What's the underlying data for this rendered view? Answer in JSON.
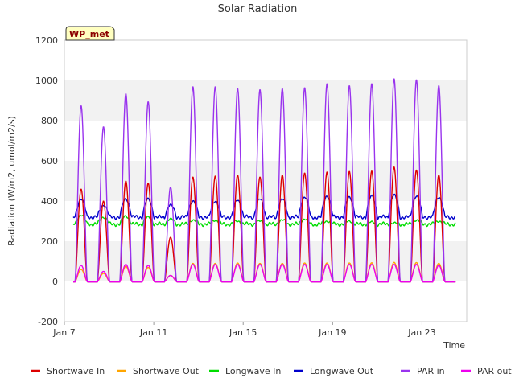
{
  "chart_data": {
    "type": "line",
    "title": "Solar Radiation",
    "xlabel": "Time",
    "ylabel": "Radiation (W/m2, umol/m2/s)",
    "badge": "WP_met",
    "ylim": [
      -200,
      1200
    ],
    "yticks": [
      -200,
      0,
      200,
      400,
      600,
      800,
      1000,
      1200
    ],
    "xlim": [
      7.0,
      25.0
    ],
    "xticks": [
      {
        "value": 7,
        "label": "Jan 7"
      },
      {
        "value": 11,
        "label": "Jan 11"
      },
      {
        "value": 15,
        "label": "Jan 15"
      },
      {
        "value": 19,
        "label": "Jan 19"
      },
      {
        "value": 23,
        "label": "Jan 23"
      }
    ],
    "grid": "horizontal bands",
    "legend_position": "bottom",
    "daily_peaks": {
      "days": [
        7.75,
        8.75,
        9.75,
        10.75,
        11.75,
        12.75,
        13.75,
        14.75,
        15.75,
        16.75,
        17.75,
        18.75,
        19.75,
        20.75,
        21.75,
        22.75,
        23.75
      ],
      "shortwave_in": [
        460,
        400,
        500,
        490,
        220,
        520,
        525,
        530,
        520,
        530,
        540,
        545,
        548,
        550,
        570,
        555,
        530
      ],
      "shortwave_out": [
        60,
        40,
        75,
        70,
        30,
        90,
        90,
        92,
        90,
        90,
        92,
        92,
        92,
        93,
        95,
        94,
        90
      ],
      "longwave_in": [
        330,
        320,
        325,
        320,
        310,
        305,
        305,
        300,
        300,
        305,
        310,
        300,
        300,
        295,
        290,
        305,
        300
      ],
      "longwave_out": [
        410,
        380,
        410,
        410,
        380,
        400,
        400,
        405,
        410,
        410,
        420,
        425,
        420,
        425,
        430,
        425,
        420
      ],
      "par_in": [
        875,
        770,
        935,
        895,
        470,
        970,
        970,
        960,
        955,
        960,
        965,
        985,
        975,
        985,
        1010,
        1005,
        975
      ],
      "par_out": [
        80,
        50,
        85,
        80,
        30,
        85,
        85,
        85,
        85,
        85,
        85,
        85,
        85,
        85,
        85,
        85,
        80
      ]
    },
    "series": [
      {
        "name": "Shortwave In",
        "color": "#dd0000",
        "key": "shortwave_in",
        "night": 0
      },
      {
        "name": "Shortwave Out",
        "color": "#ffa500",
        "key": "shortwave_out",
        "night": 0
      },
      {
        "name": "Longwave In",
        "color": "#00dd00",
        "key": "longwave_in",
        "night": 285
      },
      {
        "name": "Longwave Out",
        "color": "#0000cc",
        "key": "longwave_out",
        "night": 320
      },
      {
        "name": "PAR in",
        "color": "#9933ee",
        "key": "par_in",
        "night": 0
      },
      {
        "name": "PAR out",
        "color": "#ee00ee",
        "key": "par_out",
        "night": 0
      }
    ],
    "data_range": [
      7.4,
      24.5
    ]
  }
}
